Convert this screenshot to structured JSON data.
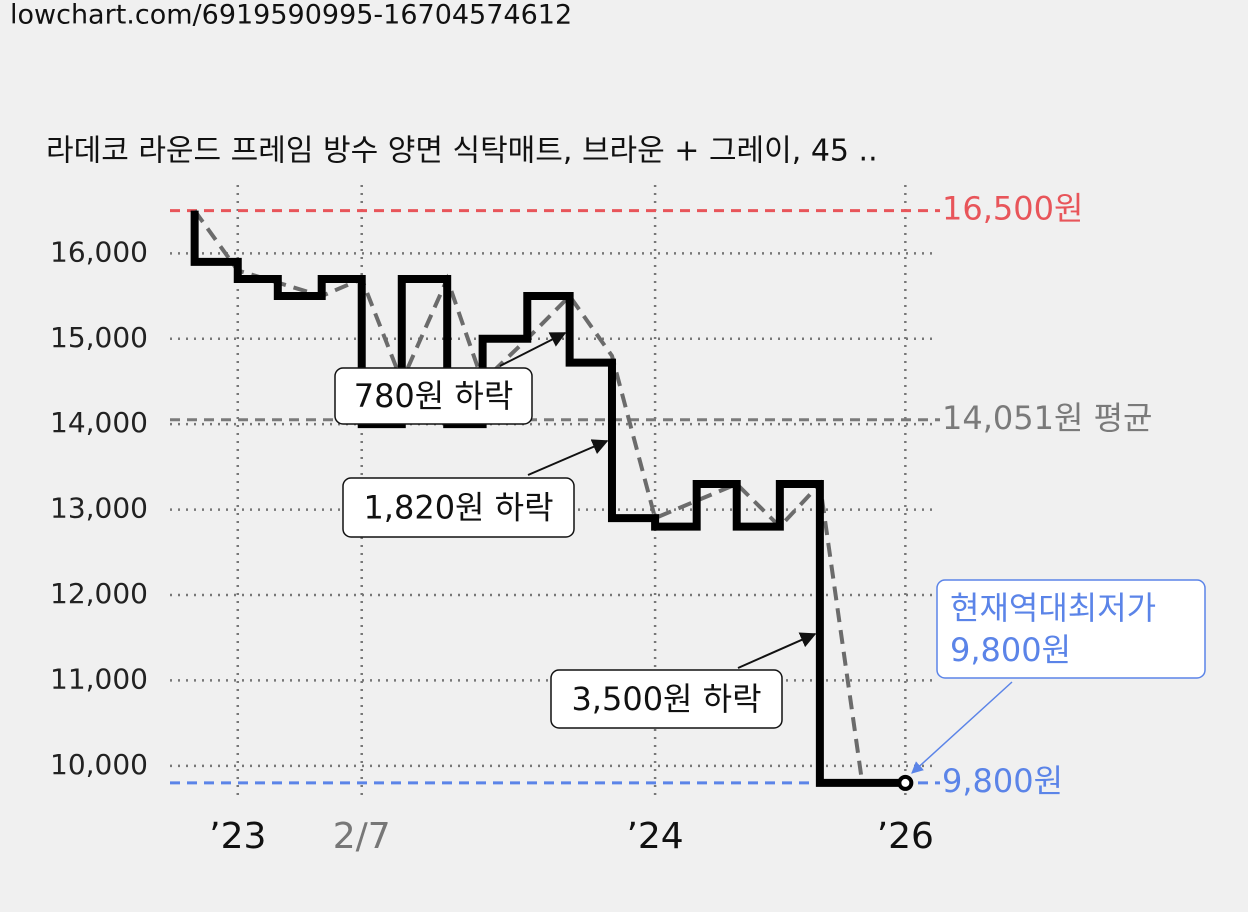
{
  "source": "lowchart.com/6919590995-16704574612",
  "chart_data": {
    "type": "step",
    "title": "라데코 라운드 프레임 방수 양면 식탁매트, 브라운 + 그레이, 45 ..",
    "xlim": [
      0,
      100
    ],
    "xticks": [
      {
        "value": 8.8,
        "label": "’23",
        "color": "#111111"
      },
      {
        "value": 24.9,
        "label": "2/7",
        "color": "#777777"
      },
      {
        "value": 63.0,
        "label": "’24",
        "color": "#111111"
      },
      {
        "value": 95.5,
        "label": "’26",
        "color": "#111111"
      }
    ],
    "ylim": [
      9600,
      16800
    ],
    "yticks": [
      {
        "value": 10000,
        "label": "10,000"
      },
      {
        "value": 11000,
        "label": "11,000"
      },
      {
        "value": 12000,
        "label": "12,000"
      },
      {
        "value": 13000,
        "label": "13,000"
      },
      {
        "value": 14000,
        "label": "14,000"
      },
      {
        "value": 15000,
        "label": "15,000"
      },
      {
        "value": 16000,
        "label": "16,000"
      }
    ],
    "grid": true,
    "series": [
      {
        "color": "#000000",
        "x": [
          3.2,
          3.2,
          8.8,
          14.0,
          19.7,
          24.9,
          30.1,
          36.0,
          40.6,
          46.4,
          51.9,
          57.4,
          63.0,
          68.4,
          73.6,
          79.2,
          84.4,
          95.5
        ],
        "values": [
          16500,
          15900,
          15700,
          15500,
          15700,
          14000,
          15700,
          14000,
          15000,
          15500,
          14720,
          12900,
          12800,
          13300,
          12800,
          13300,
          9800,
          9800
        ]
      },
      {
        "color": "#6b6b6b",
        "x": [
          3.2,
          8.8,
          19.7,
          24.9,
          30.1,
          36.0,
          40.6,
          46.4,
          51.9,
          57.4,
          63.0,
          73.6,
          79.2,
          84.4,
          89.9,
          95.5
        ],
        "values": [
          16500,
          15800,
          15500,
          15700,
          14500,
          15700,
          14500,
          15000,
          15500,
          14800,
          12900,
          13300,
          12800,
          13300,
          9800,
          9800
        ]
      }
    ],
    "reference_lines": [
      {
        "value": 16500,
        "label": "16,500원",
        "color": "#e8555a"
      },
      {
        "value": 14051,
        "label": "14,051원 평균",
        "color": "#7a7a7a"
      },
      {
        "value": 9800,
        "label": "9,800원",
        "color": "#5b84e8"
      }
    ],
    "annotations": [
      {
        "lines": [
          "780원 하락"
        ]
      },
      {
        "lines": [
          "1,820원 하락"
        ]
      },
      {
        "lines": [
          "3,500원 하락"
        ]
      },
      {
        "lines": [
          "현재역대최저가",
          "9,800원"
        ],
        "color": "#5b84e8"
      }
    ]
  }
}
